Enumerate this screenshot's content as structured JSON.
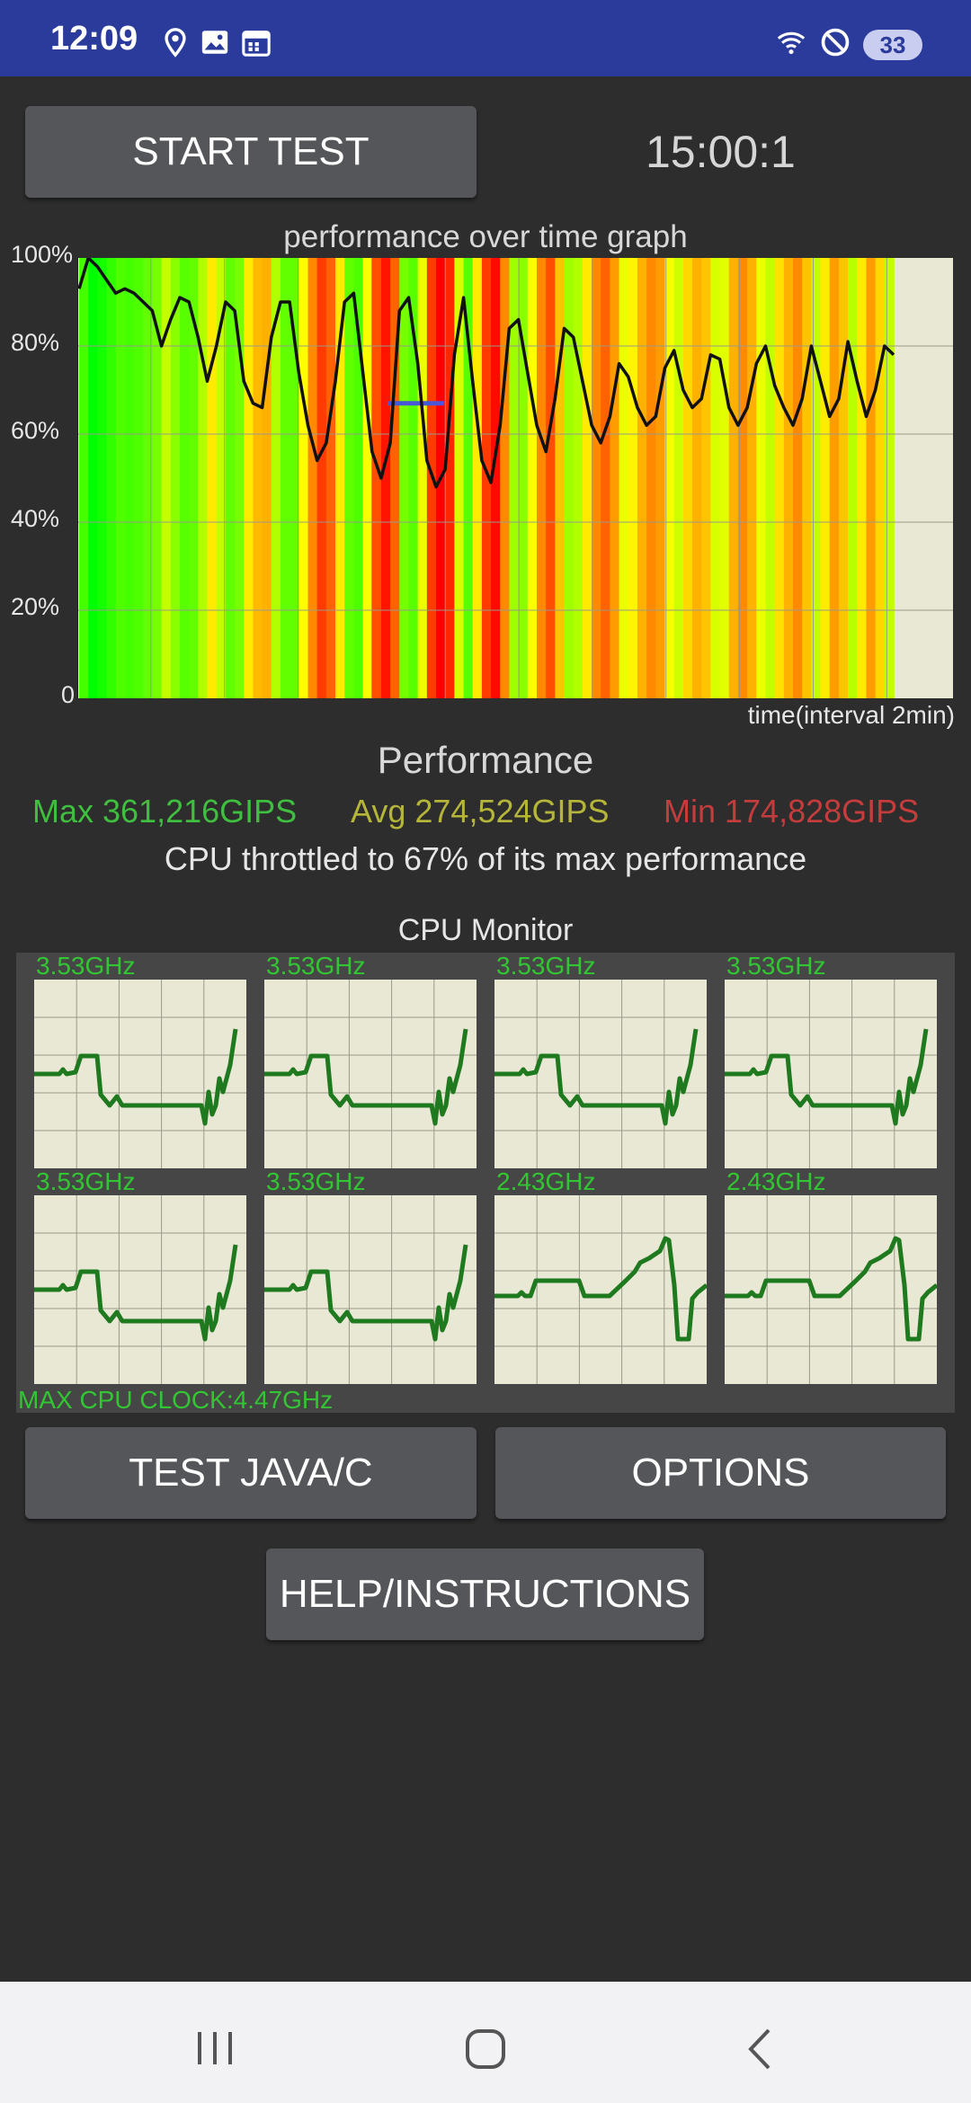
{
  "status_bar": {
    "time": "12:09",
    "icons": [
      "location-icon",
      "gallery-icon",
      "calendar-icon",
      "wifi-icon",
      "do-not-disturb-icon"
    ],
    "battery": "33"
  },
  "controls": {
    "start_button": "START TEST",
    "timer": "15:00:1"
  },
  "graph": {
    "title": "performance over time graph",
    "y_ticks": [
      "100%",
      "80%",
      "60%",
      "40%",
      "20%",
      "0"
    ],
    "x_label": "time(interval 2min)",
    "avg_marker_percent": 67
  },
  "chart_data": {
    "type": "line",
    "title": "performance over time graph",
    "xlabel": "time(interval 2min)",
    "ylabel": "",
    "ylim": [
      0,
      100
    ],
    "x_grid_interval_min": 2,
    "x_range_min": [
      0,
      15
    ],
    "series": [
      {
        "values": [
          93,
          100,
          98,
          95,
          92,
          93,
          92,
          90,
          88,
          80,
          86,
          91,
          90,
          82,
          72,
          80,
          90,
          88,
          72,
          67,
          66,
          82,
          90,
          90,
          74,
          62,
          54,
          58,
          72,
          90,
          92,
          74,
          56,
          50,
          58,
          88,
          91,
          76,
          54,
          48,
          52,
          78,
          91,
          72,
          54,
          49,
          62,
          84,
          86,
          74,
          62,
          56,
          68,
          84,
          82,
          72,
          62,
          58,
          64,
          76,
          73,
          66,
          62,
          64,
          75,
          79,
          70,
          66,
          68,
          78,
          77,
          66,
          62,
          66,
          76,
          80,
          71,
          66,
          62,
          68,
          80,
          72,
          64,
          68,
          81,
          72,
          64,
          70,
          80,
          78
        ]
      }
    ]
  },
  "performance": {
    "title": "Performance",
    "max": "Max 361,216GIPS",
    "avg": "Avg 274,524GIPS",
    "min": "Min 174,828GIPS",
    "throttle": "CPU throttled to 67% of its max performance",
    "colors": {
      "max": "#3fbf3f",
      "avg": "#b5b53a",
      "min": "#c43c3c"
    }
  },
  "cpu_monitor": {
    "title": "CPU Monitor",
    "cores": [
      {
        "freq": "3.53GHz",
        "pattern": "big"
      },
      {
        "freq": "3.53GHz",
        "pattern": "big"
      },
      {
        "freq": "3.53GHz",
        "pattern": "big"
      },
      {
        "freq": "3.53GHz",
        "pattern": "big"
      },
      {
        "freq": "3.53GHz",
        "pattern": "big"
      },
      {
        "freq": "3.53GHz",
        "pattern": "big"
      },
      {
        "freq": "2.43GHz",
        "pattern": "mid"
      },
      {
        "freq": "2.43GHz",
        "pattern": "mid"
      }
    ],
    "max_clock": "MAX CPU CLOCK:4.47GHz",
    "line_color": "#1f7a1f"
  },
  "buttons": {
    "test_java": "TEST JAVA/C",
    "options": "OPTIONS",
    "help": "HELP/INSTRUCTIONS"
  },
  "navbar": {
    "icons": [
      "recent-apps-icon",
      "home-icon",
      "back-icon"
    ]
  }
}
